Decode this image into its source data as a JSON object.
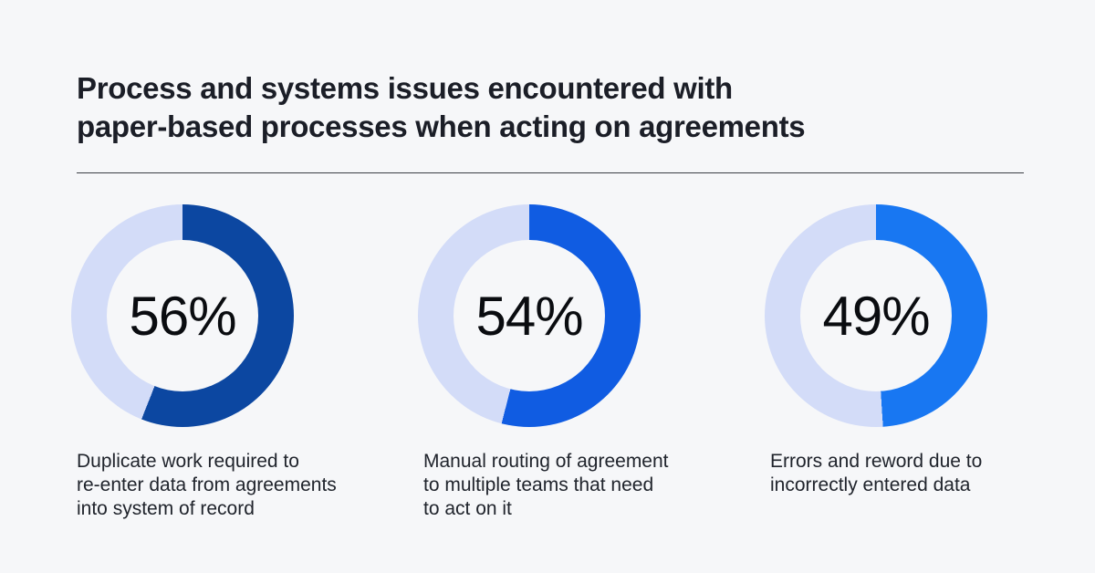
{
  "page": {
    "background_color": "#f6f7f9"
  },
  "header": {
    "title": "Process and systems issues encountered with paper-based processes when acting on agreements",
    "title_lines": [
      "Process and systems issues encountered with",
      "paper-based processes when acting on agreements"
    ]
  },
  "chart_data": {
    "type": "pie",
    "variant": "donut",
    "start_angle_deg": 0,
    "direction": "clockwise",
    "track_color": "#d3dcf8",
    "value_text_color": "#0a0c10",
    "charts": [
      {
        "value": 56,
        "label": "56%",
        "fill_color": "#0c47a1",
        "caption": "Duplicate work required to re-enter data from agreements into system of record",
        "caption_lines": [
          "Duplicate work required to",
          "re-enter data from agreements",
          "into system of record"
        ]
      },
      {
        "value": 54,
        "label": "54%",
        "fill_color": "#105ce2",
        "caption": "Manual routing of agreement to multiple teams that need to act on it",
        "caption_lines": [
          "Manual routing of agreement",
          "to multiple teams that need",
          "to act on it"
        ]
      },
      {
        "value": 49,
        "label": "49%",
        "fill_color": "#1877f2",
        "caption": "Errors and reword due to incorrectly entered data",
        "caption_lines": [
          "Errors and reword due to",
          "incorrectly entered data"
        ]
      }
    ]
  }
}
